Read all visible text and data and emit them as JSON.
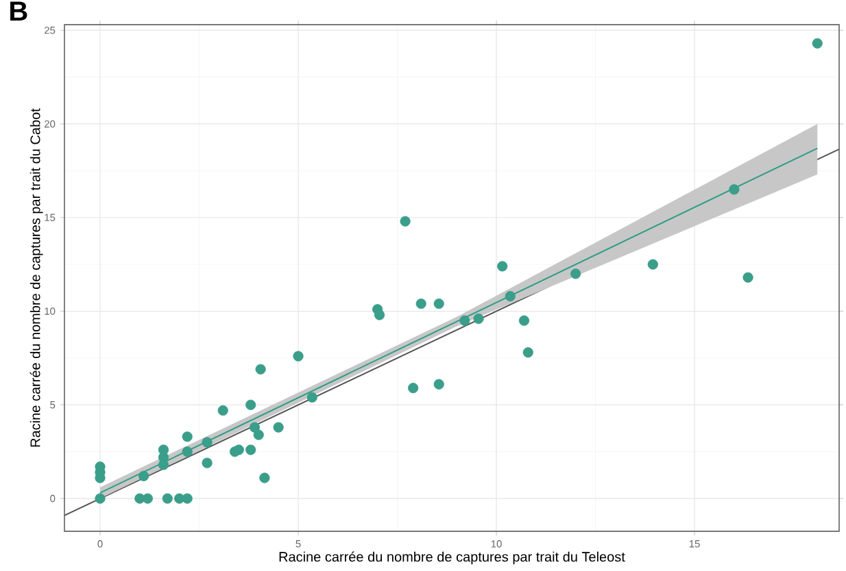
{
  "chart_data": {
    "type": "scatter",
    "title": "B",
    "xlabel": "Racine carrée du nombre de captures par trait du Teleost",
    "ylabel": "Racine carrée du nombre de captures par trait du Cabot",
    "xlim": [
      -0.9,
      18.65
    ],
    "ylim": [
      -1.75,
      25.3
    ],
    "xticks": [
      0,
      5,
      10,
      15
    ],
    "yticks": [
      0,
      5,
      10,
      15,
      20,
      25
    ],
    "grid": true,
    "series": [
      {
        "type": "line",
        "color": "#555555",
        "line_style": "solid",
        "x": [
          -0.9,
          18.65
        ],
        "values": [
          -0.9,
          18.65
        ]
      },
      {
        "type": "line",
        "color": "#2e9c86",
        "line_style": "solid",
        "x": [
          0,
          9,
          18.1
        ],
        "values": [
          0.3,
          9.45,
          18.7
        ],
        "lower": [
          0.0,
          9.2,
          17.3
        ],
        "upper": [
          0.6,
          9.7,
          20.0
        ]
      },
      {
        "marker": "circle",
        "color": "#3a9e8a",
        "x": [
          0,
          0,
          0,
          0,
          1.1,
          1.0,
          1.2,
          1.7,
          2.0,
          2.2,
          1.6,
          1.6,
          1.6,
          2.2,
          2.2,
          2.7,
          2.7,
          3.1,
          3.4,
          3.5,
          3.8,
          3.9,
          3.8,
          4.05,
          4.0,
          4.15,
          4.5,
          5.0,
          5.35,
          7.0,
          7.05,
          7.7,
          7.9,
          8.1,
          8.55,
          8.55,
          9.2,
          9.55,
          10.15,
          10.35,
          10.7,
          10.8,
          12.0,
          13.95,
          16.0,
          16.35,
          18.1
        ],
        "values": [
          0,
          1.7,
          1.4,
          1.1,
          1.2,
          0,
          0,
          0,
          0,
          0,
          2.6,
          2.2,
          1.8,
          3.3,
          2.5,
          3.0,
          1.9,
          4.7,
          2.5,
          2.6,
          5.0,
          3.8,
          2.6,
          6.9,
          3.4,
          1.1,
          3.8,
          7.6,
          5.4,
          10.1,
          9.8,
          14.8,
          5.9,
          10.4,
          10.4,
          6.1,
          9.5,
          9.6,
          12.4,
          10.8,
          9.5,
          7.8,
          12.0,
          12.5,
          16.5,
          11.8,
          24.3
        ]
      }
    ]
  }
}
